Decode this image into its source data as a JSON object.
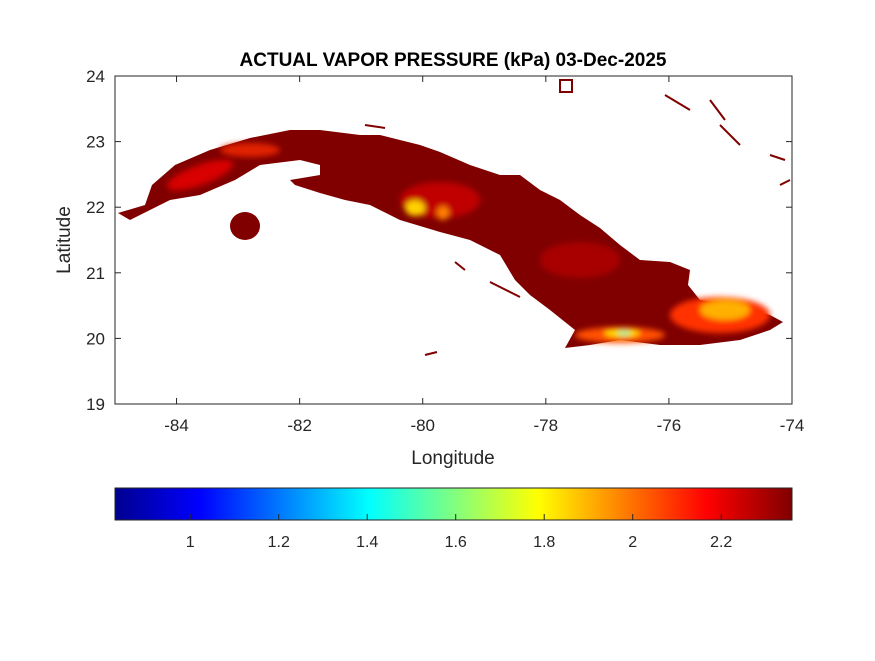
{
  "chart_data": {
    "type": "heatmap",
    "title": "ACTUAL VAPOR PRESSURE (kPa) 03-Dec-2025",
    "xlabel": "Longitude",
    "ylabel": "Latitude",
    "xlim": [
      -85,
      -74
    ],
    "ylim": [
      19,
      24
    ],
    "xticks": [
      -84,
      -82,
      -80,
      -78,
      -76,
      -74
    ],
    "yticks": [
      19,
      20,
      21,
      22,
      23,
      24
    ],
    "grid": false,
    "colormap": "jet",
    "colorbar": {
      "location": "bottom",
      "clim": [
        0.83,
        2.36
      ],
      "ticks": [
        1,
        1.2,
        1.4,
        1.6,
        1.8,
        2,
        2.2
      ]
    },
    "description_of_field": "Gridded values over Cuba, mostly near 2.3 kPa (dark red) with lower values (orange/yellow, ~1.8–2.1) over mountain areas; minimum near 1.5 in the Sierra Maestra",
    "colors": {
      "max": "#800000",
      "high": "#d40000",
      "mid": "#ff8000",
      "low": "#ffff00",
      "min": "#40ffc0"
    }
  }
}
